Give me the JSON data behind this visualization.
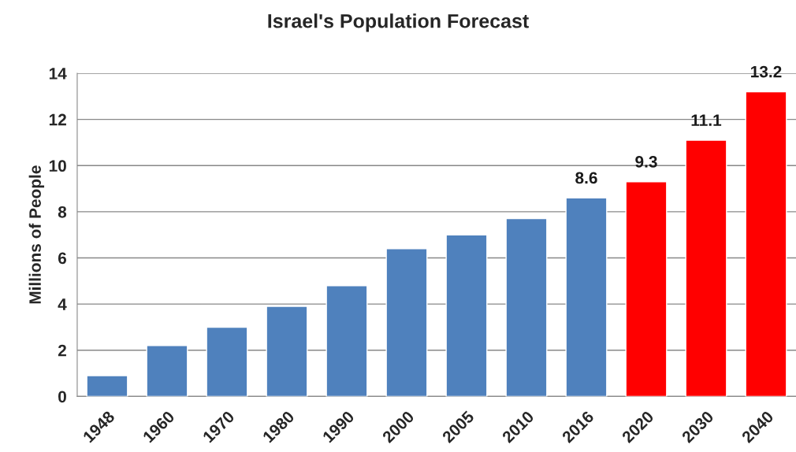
{
  "chart_data": {
    "type": "bar",
    "title": "Israel's Population Forecast",
    "ylabel": "Millions of People",
    "categories": [
      "1948",
      "1960",
      "1970",
      "1980",
      "1990",
      "2000",
      "2005",
      "2010",
      "2016",
      "2020",
      "2030",
      "2040"
    ],
    "values": [
      0.9,
      2.2,
      3.0,
      3.9,
      4.8,
      6.4,
      7.0,
      7.7,
      8.6,
      9.3,
      11.1,
      13.2
    ],
    "colors": [
      "#4f81bd",
      "#4f81bd",
      "#4f81bd",
      "#4f81bd",
      "#4f81bd",
      "#4f81bd",
      "#4f81bd",
      "#4f81bd",
      "#4f81bd",
      "#ff0000",
      "#ff0000",
      "#ff0000"
    ],
    "value_labels": [
      null,
      null,
      null,
      null,
      null,
      null,
      null,
      null,
      "8.6",
      "9.3",
      "11.1",
      "13.2"
    ],
    "ylim": [
      0,
      14
    ],
    "yticks": [
      0,
      2,
      4,
      6,
      8,
      10,
      12,
      14
    ],
    "grid": "y"
  }
}
